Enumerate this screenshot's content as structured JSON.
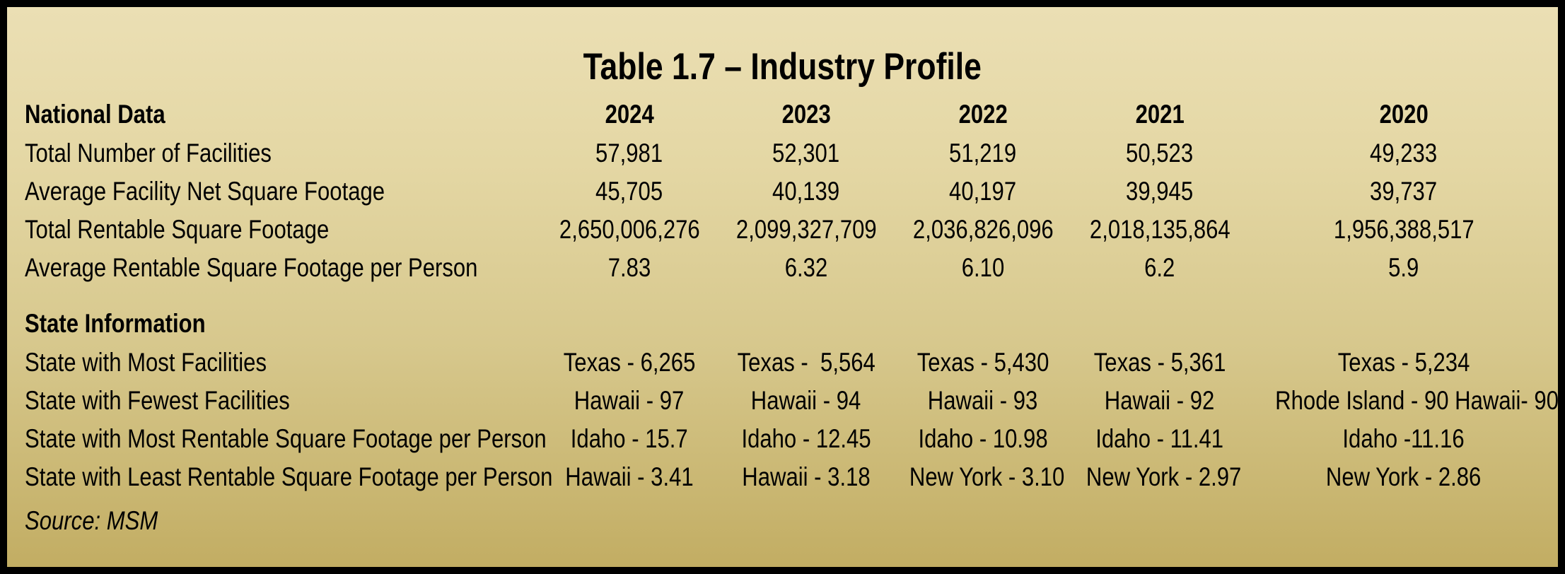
{
  "title": "Table 1.7 – Industry Profile",
  "source": "Source: MSM",
  "colors": {
    "background_top": "#ebdfb4",
    "background_bottom": "#c2ad63",
    "frame_border": "#000000",
    "text": "#000000"
  },
  "chart_data": {
    "type": "table",
    "title": "Table 1.7 – Industry Profile",
    "columns": [
      "2024",
      "2023",
      "2022",
      "2021",
      "2020"
    ],
    "sections": [
      {
        "name": "National Data",
        "rows": [
          {
            "label": "Total Number of Facilities",
            "values": [
              "57,981",
              "52,301",
              "51,219",
              "50,523",
              "49,233"
            ]
          },
          {
            "label": "Average Facility Net Square Footage",
            "values": [
              "45,705",
              "40,139",
              "40,197",
              "39,945",
              "39,737"
            ]
          },
          {
            "label": "Total Rentable Square Footage",
            "values": [
              "2,650,006,276",
              "2,099,327,709",
              "2,036,826,096",
              "2,018,135,864",
              "1,956,388,517"
            ]
          },
          {
            "label": "Average Rentable Square Footage per Person",
            "values": [
              "7.83",
              "6.32",
              "6.10",
              "6.2",
              "5.9"
            ]
          }
        ]
      },
      {
        "name": "State Information",
        "rows": [
          {
            "label": "State with Most Facilities",
            "values": [
              "Texas - 6,265",
              "Texas -  5,564",
              "Texas - 5,430",
              "Texas - 5,361",
              "Texas - 5,234"
            ]
          },
          {
            "label": "State with Fewest Facilities",
            "values": [
              "Hawaii - 97",
              "Hawaii - 94",
              "Hawaii - 93",
              "Hawaii - 92",
              "Rhode Island - 90 Hawaii- 90"
            ]
          },
          {
            "label": "State with Most Rentable Square Footage per Person",
            "values": [
              "Idaho - 15.7",
              "Idaho - 12.45",
              "Idaho - 10.98",
              "Idaho - 11.41",
              "Idaho -11.16"
            ]
          },
          {
            "label": "State with Least Rentable Square Footage per Person",
            "values": [
              "Hawaii - 3.41",
              "Hawaii - 3.18",
              "New York - 3.10",
              "New York - 2.97",
              "New York - 2.86"
            ]
          }
        ]
      }
    ],
    "source": "Source: MSM"
  }
}
